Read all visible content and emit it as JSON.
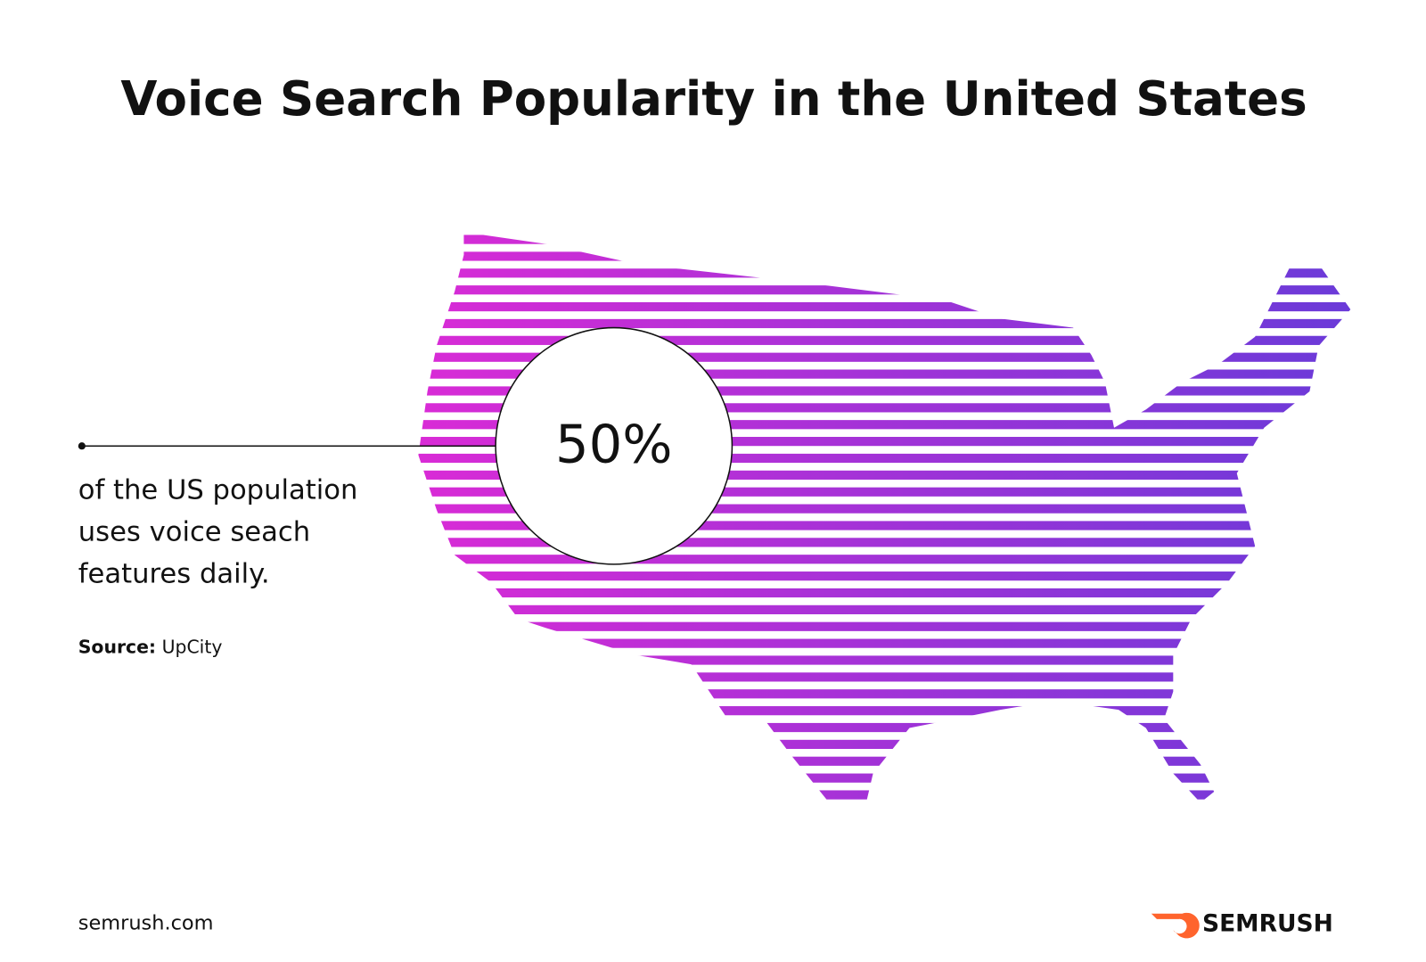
{
  "header": {
    "title": "Voice Search Popularity in the United States"
  },
  "stat": {
    "value": "50%",
    "description": [
      "of the US population",
      "uses voice seach",
      "features daily."
    ]
  },
  "source": {
    "label": "Source:",
    "name": "UpCity"
  },
  "footer": {
    "site": "semrush.com",
    "brand": "SEMRUSH"
  }
}
